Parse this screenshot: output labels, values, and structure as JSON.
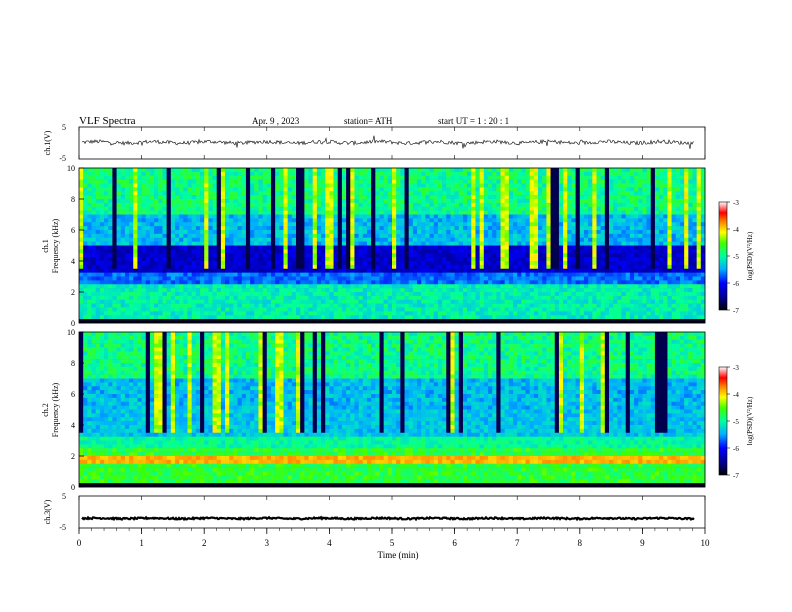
{
  "header": {
    "title": "VLF  Spectra",
    "date": "Apr. 9  , 2023",
    "station": "station= ATH",
    "start": "start  UT  =   1  : 20 : 1"
  },
  "chart_data": [
    {
      "type": "line",
      "ylabel": "ch.1(V)",
      "ylim": [
        -5,
        5
      ],
      "yticks": [
        "5",
        "-5"
      ],
      "description_values": {
        "baseline": 0.2,
        "amplitude": 0.6
      }
    },
    {
      "type": "heatmap",
      "ylabel": "ch.1\nFrequency  (kHz)",
      "ylabel_lines": [
        "ch.1",
        "Frequency  (kHz)"
      ],
      "ylim": [
        0,
        10
      ],
      "yticks": [
        "0",
        "2",
        "4",
        "6",
        "8",
        "10"
      ],
      "colorbar": {
        "label": "log(PSD)(V²/Hz)",
        "range": [
          -7,
          -3
        ],
        "ticks": [
          "-3",
          "-4",
          "-5",
          "-6",
          "-7"
        ]
      }
    },
    {
      "type": "heatmap",
      "ylabel": "ch.2\nFrequency  (kHz)",
      "ylabel_lines": [
        "ch.2",
        "Frequency  (kHz)"
      ],
      "ylim": [
        0,
        10
      ],
      "yticks": [
        "0",
        "2",
        "4",
        "6",
        "8",
        "10"
      ],
      "colorbar": {
        "label": "log(PSD)(V²/Hz)",
        "range": [
          -7,
          -3
        ],
        "ticks": [
          "-3",
          "-4",
          "-5",
          "-6",
          "-7"
        ]
      }
    },
    {
      "type": "line",
      "ylabel": "ch.3(V)",
      "ylim": [
        -5,
        5
      ],
      "yticks": [
        "5",
        "-5"
      ],
      "description_values": {
        "baseline": -2.0,
        "amplitude": 0.25
      }
    }
  ],
  "xaxis": {
    "label": "Time  (min)",
    "xlim": [
      0,
      10
    ],
    "ticks": [
      "0",
      "1",
      "2",
      "3",
      "4",
      "5",
      "6",
      "7",
      "8",
      "9",
      "10"
    ]
  }
}
